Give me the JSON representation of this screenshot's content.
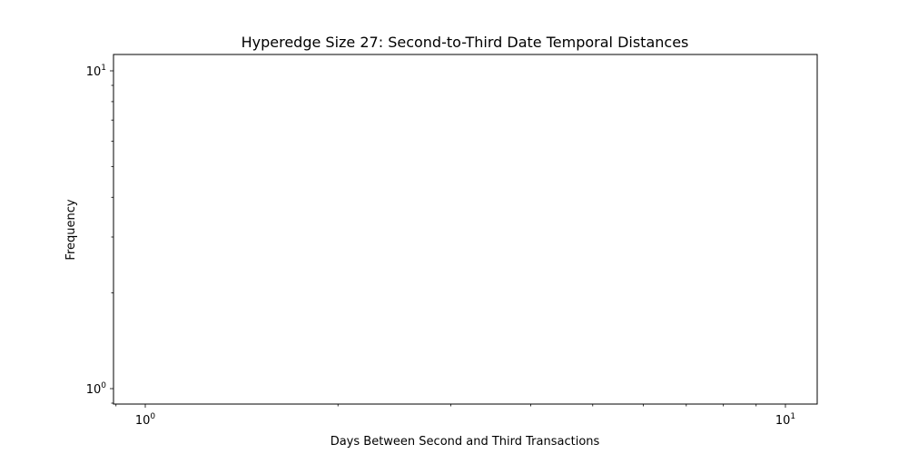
{
  "chart_data": {
    "type": "bar",
    "title": "Hyperedge Size 27: Second-to-Third Date Temporal Distances",
    "xlabel": "Days Between Second and Third Transactions",
    "ylabel": "Frequency",
    "xscale": "log",
    "yscale": "log",
    "xlim": [
      0.955,
      1.047
    ],
    "ylim": [
      0.955,
      1.047
    ],
    "x_major_ticks": [
      {
        "value": 1,
        "base": "10",
        "exp": "0"
      },
      {
        "value": 10,
        "base": "10",
        "exp": "1"
      }
    ],
    "y_major_ticks": [
      {
        "value": 1,
        "base": "10",
        "exp": "0"
      },
      {
        "value": 10,
        "base": "10",
        "exp": "1"
      }
    ],
    "series": [],
    "grid": false,
    "legend": "none"
  }
}
